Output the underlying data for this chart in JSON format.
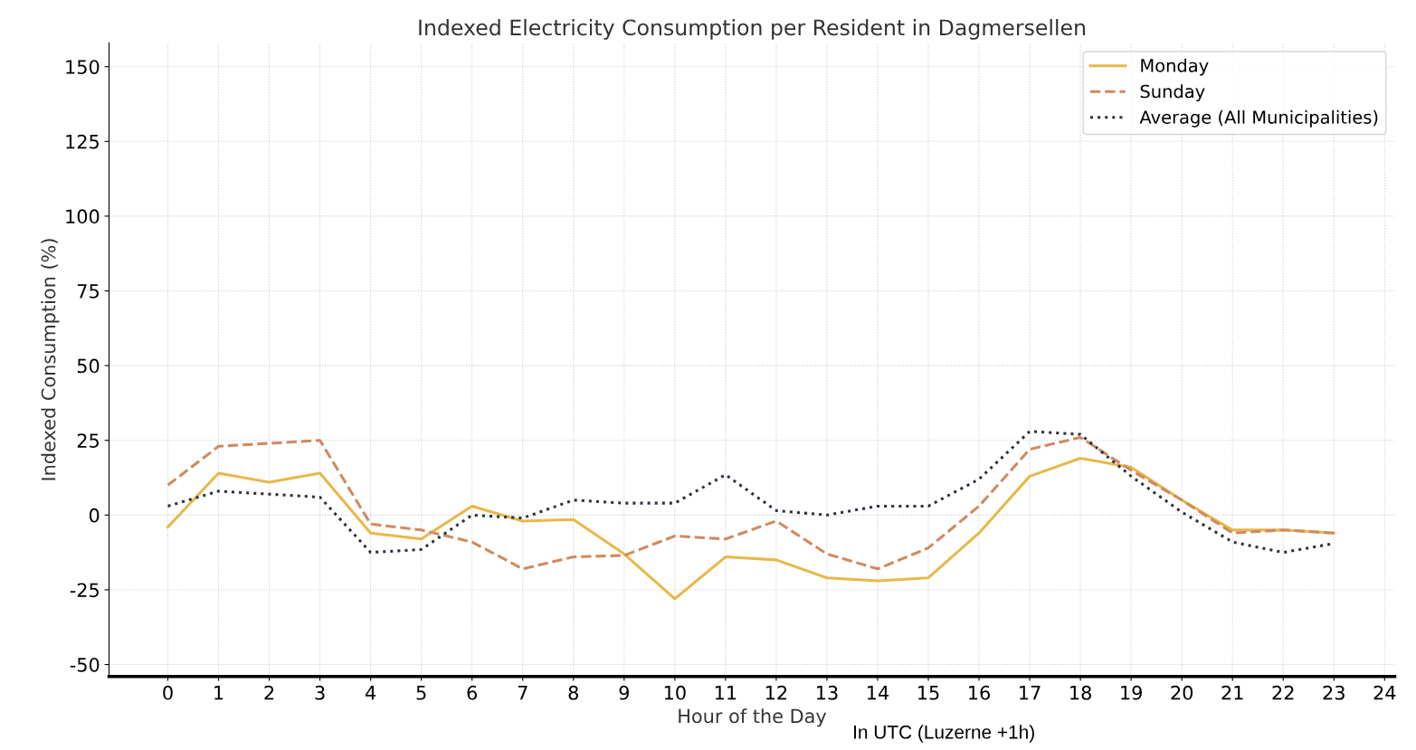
{
  "chart_data": {
    "type": "line",
    "title": "Indexed Electricity Consumption per Resident in Dagmersellen",
    "xlabel": "Hour of the Day",
    "ylabel": "Indexed Consumption (%)",
    "annotations": [
      "In UTC (Luzerne +1h)"
    ],
    "x": [
      0,
      1,
      2,
      3,
      4,
      5,
      6,
      7,
      8,
      9,
      10,
      11,
      12,
      13,
      14,
      15,
      16,
      17,
      18,
      19,
      20,
      21,
      22,
      23
    ],
    "series": [
      {
        "name": "Monday",
        "color": "#e8b84a",
        "line_style": "solid",
        "values": [
          -4,
          14,
          11,
          14,
          -6,
          -8,
          3,
          -2,
          -1.5,
          -13,
          -28,
          -14,
          -15,
          -21,
          -22,
          -21,
          -6,
          13,
          19,
          16,
          5,
          -5,
          -5,
          -6
        ]
      },
      {
        "name": "Sunday",
        "color": "#d08a60",
        "line_style": "dashed",
        "values": [
          10,
          23,
          24,
          25,
          -3,
          -5,
          -9,
          -18,
          -14,
          -13.5,
          -7,
          -8,
          -2,
          -13,
          -18,
          -11,
          3,
          22,
          26,
          15,
          5,
          -6,
          -5,
          -6
        ]
      },
      {
        "name": "Average (All Municipalities)",
        "color": "#2b3440",
        "line_style": "dotted",
        "values": [
          3,
          8,
          7,
          6,
          -12.5,
          -11.5,
          0,
          -1,
          5,
          4,
          4,
          13.5,
          1.5,
          0,
          3,
          3,
          12,
          28,
          27,
          13,
          1,
          -9,
          -12.5,
          -9.5
        ]
      }
    ],
    "xlim": [
      -1.16,
      24.2
    ],
    "ylim": [
      -54,
      158
    ],
    "xticks": [
      0,
      1,
      2,
      3,
      4,
      5,
      6,
      7,
      8,
      9,
      10,
      11,
      12,
      13,
      14,
      15,
      16,
      17,
      18,
      19,
      20,
      21,
      22,
      23,
      24
    ],
    "yticks": [
      -50,
      -25,
      0,
      25,
      50,
      75,
      100,
      125,
      150
    ],
    "grid": true,
    "legend": "top right",
    "marker": "none"
  }
}
